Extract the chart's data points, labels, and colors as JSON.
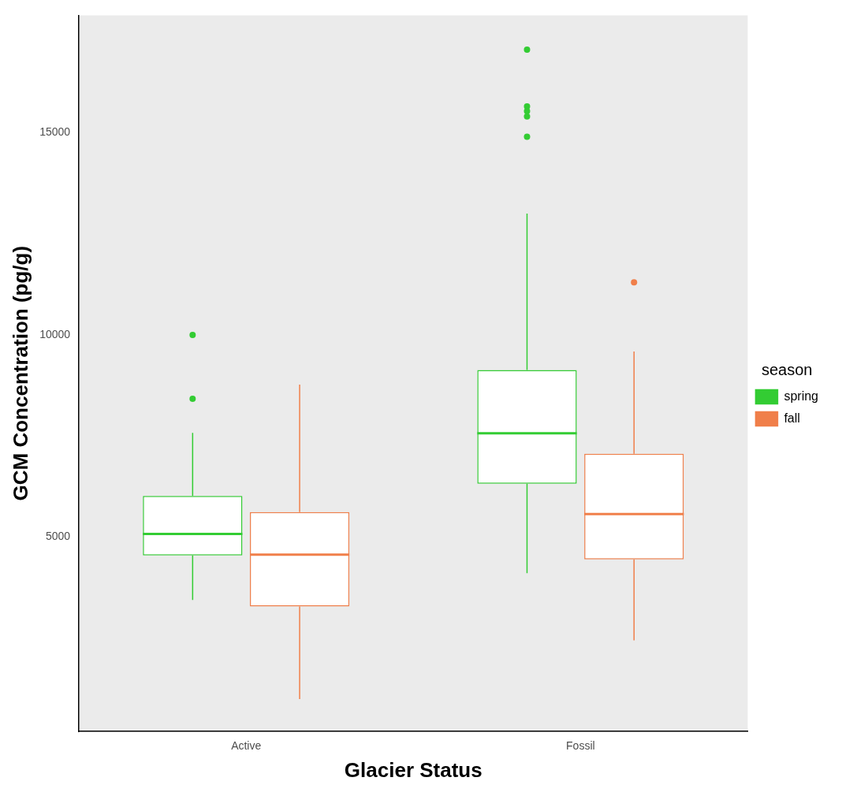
{
  "chart_data": {
    "type": "box",
    "xlabel": "Glacier Status",
    "ylabel": "GCM Concentration (pg/g)",
    "legend_title": "season",
    "legend": "right",
    "categories": [
      "Active",
      "Fossil"
    ],
    "ylim": [
      200,
      17900
    ],
    "yticks": [
      5000,
      10000,
      15000
    ],
    "series": [
      {
        "name": "spring",
        "color": "#33cc33",
        "boxes": [
          {
            "low": 3450,
            "q1": 4550,
            "median": 5080,
            "q3": 6020,
            "high": 7580,
            "outliers": [
              10000,
              8420
            ]
          },
          {
            "low": 4110,
            "q1": 6320,
            "median": 7570,
            "q3": 9130,
            "high": 13000,
            "outliers": [
              17050,
              15650,
              15530,
              15400,
              14900
            ]
          }
        ]
      },
      {
        "name": "fall",
        "color": "#f07f4a",
        "boxes": [
          {
            "low": 1000,
            "q1": 3290,
            "median": 4570,
            "q3": 5620,
            "high": 8770
          },
          {
            "low": 2450,
            "q1": 4450,
            "median": 5570,
            "q3": 7060,
            "high": 9590,
            "outliers": [
              11300
            ]
          }
        ]
      }
    ]
  }
}
